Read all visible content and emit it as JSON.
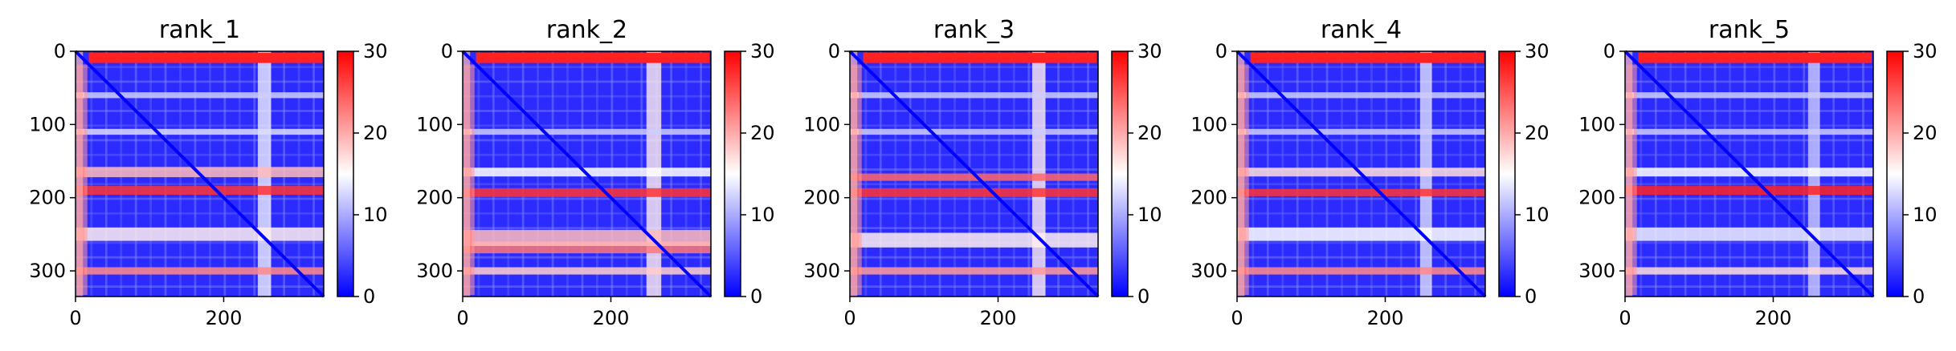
{
  "chart_data": [
    {
      "type": "heatmap",
      "title": "rank_1",
      "xlabel": "",
      "ylabel": "",
      "x_ticks": [
        0,
        200
      ],
      "y_ticks": [
        0,
        100,
        200,
        300
      ],
      "xlim": [
        0,
        335
      ],
      "ylim": [
        335,
        0
      ],
      "colorbar": {
        "ticks": [
          0,
          10,
          20,
          30
        ],
        "range": [
          0,
          30
        ],
        "colormap": "bwr"
      },
      "bands": [
        {
          "center": 190,
          "width": 12,
          "value": 27
        },
        {
          "center": 300,
          "width": 10,
          "value": 22
        },
        {
          "center": 165,
          "width": 14,
          "value": 19
        },
        {
          "center": 250,
          "width": 18,
          "value": 16
        },
        {
          "center": 110,
          "width": 8,
          "value": 13
        },
        {
          "center": 60,
          "width": 8,
          "value": 12
        }
      ],
      "vertical_bands": [
        {
          "center": 255,
          "width": 18,
          "value": 14
        }
      ]
    },
    {
      "type": "heatmap",
      "title": "rank_2",
      "xlabel": "",
      "ylabel": "",
      "x_ticks": [
        0,
        200
      ],
      "y_ticks": [
        0,
        100,
        200,
        300
      ],
      "xlim": [
        0,
        335
      ],
      "ylim": [
        335,
        0
      ],
      "colorbar": {
        "ticks": [
          0,
          10,
          20,
          30
        ],
        "range": [
          0,
          30
        ],
        "colormap": "bwr"
      },
      "bands": [
        {
          "center": 193,
          "width": 12,
          "value": 27
        },
        {
          "center": 268,
          "width": 16,
          "value": 23
        },
        {
          "center": 255,
          "width": 22,
          "value": 19
        },
        {
          "center": 300,
          "width": 10,
          "value": 18
        },
        {
          "center": 165,
          "width": 12,
          "value": 15
        },
        {
          "center": 110,
          "width": 8,
          "value": 12
        }
      ],
      "vertical_bands": [
        {
          "center": 258,
          "width": 20,
          "value": 16
        }
      ]
    },
    {
      "type": "heatmap",
      "title": "rank_3",
      "xlabel": "",
      "ylabel": "",
      "x_ticks": [
        0,
        200
      ],
      "y_ticks": [
        0,
        100,
        200,
        300
      ],
      "xlim": [
        0,
        335
      ],
      "ylim": [
        335,
        0
      ],
      "colorbar": {
        "ticks": [
          0,
          10,
          20,
          30
        ],
        "range": [
          0,
          30
        ],
        "colormap": "bwr"
      },
      "bands": [
        {
          "center": 193,
          "width": 12,
          "value": 27
        },
        {
          "center": 172,
          "width": 10,
          "value": 24
        },
        {
          "center": 300,
          "width": 10,
          "value": 21
        },
        {
          "center": 258,
          "width": 20,
          "value": 16
        },
        {
          "center": 110,
          "width": 8,
          "value": 12
        },
        {
          "center": 60,
          "width": 8,
          "value": 12
        }
      ],
      "vertical_bands": [
        {
          "center": 255,
          "width": 18,
          "value": 16
        }
      ]
    },
    {
      "type": "heatmap",
      "title": "rank_4",
      "xlabel": "",
      "ylabel": "",
      "x_ticks": [
        0,
        200
      ],
      "y_ticks": [
        0,
        100,
        200,
        300
      ],
      "xlim": [
        0,
        335
      ],
      "ylim": [
        335,
        0
      ],
      "colorbar": {
        "ticks": [
          0,
          10,
          20,
          30
        ],
        "range": [
          0,
          30
        ],
        "colormap": "bwr"
      },
      "bands": [
        {
          "center": 193,
          "width": 10,
          "value": 27
        },
        {
          "center": 300,
          "width": 10,
          "value": 22
        },
        {
          "center": 165,
          "width": 12,
          "value": 17
        },
        {
          "center": 250,
          "width": 18,
          "value": 15
        },
        {
          "center": 110,
          "width": 8,
          "value": 12
        },
        {
          "center": 60,
          "width": 8,
          "value": 12
        }
      ],
      "vertical_bands": [
        {
          "center": 255,
          "width": 16,
          "value": 13
        }
      ]
    },
    {
      "type": "heatmap",
      "title": "rank_5",
      "xlabel": "",
      "ylabel": "",
      "x_ticks": [
        0,
        200
      ],
      "y_ticks": [
        0,
        100,
        200,
        300
      ],
      "xlim": [
        0,
        335
      ],
      "ylim": [
        335,
        0
      ],
      "colorbar": {
        "ticks": [
          0,
          10,
          20,
          30
        ],
        "range": [
          0,
          30
        ],
        "colormap": "bwr"
      },
      "bands": [
        {
          "center": 190,
          "width": 12,
          "value": 28
        },
        {
          "center": 300,
          "width": 10,
          "value": 17
        },
        {
          "center": 165,
          "width": 12,
          "value": 15
        },
        {
          "center": 250,
          "width": 18,
          "value": 14
        },
        {
          "center": 110,
          "width": 8,
          "value": 12
        },
        {
          "center": 60,
          "width": 8,
          "value": 12
        }
      ],
      "vertical_bands": [
        {
          "center": 255,
          "width": 16,
          "value": 12
        }
      ]
    }
  ]
}
